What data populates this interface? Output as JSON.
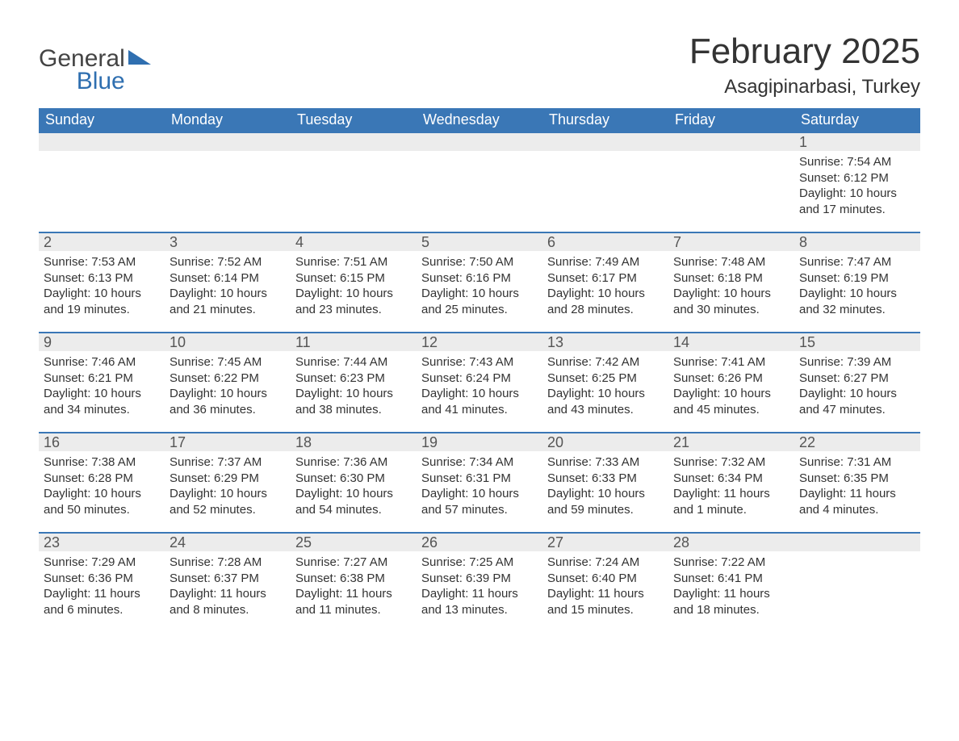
{
  "logo": {
    "word1": "General",
    "word2": "Blue"
  },
  "title": "February 2025",
  "subtitle": "Asagipinarbasi, Turkey",
  "colors": {
    "header_bg": "#3a77b6",
    "header_text": "#ffffff",
    "day_strip_bg": "#ececec",
    "day_strip_border": "#3a77b6",
    "text": "#333333",
    "logo_blue": "#2f6fb0",
    "background": "#ffffff"
  },
  "day_headers": [
    "Sunday",
    "Monday",
    "Tuesday",
    "Wednesday",
    "Thursday",
    "Friday",
    "Saturday"
  ],
  "weeks": [
    {
      "nums": [
        "",
        "",
        "",
        "",
        "",
        "",
        "1"
      ],
      "cells": [
        null,
        null,
        null,
        null,
        null,
        null,
        {
          "sunrise": "Sunrise: 7:54 AM",
          "sunset": "Sunset: 6:12 PM",
          "daylight1": "Daylight: 10 hours",
          "daylight2": "and 17 minutes."
        }
      ]
    },
    {
      "nums": [
        "2",
        "3",
        "4",
        "5",
        "6",
        "7",
        "8"
      ],
      "cells": [
        {
          "sunrise": "Sunrise: 7:53 AM",
          "sunset": "Sunset: 6:13 PM",
          "daylight1": "Daylight: 10 hours",
          "daylight2": "and 19 minutes."
        },
        {
          "sunrise": "Sunrise: 7:52 AM",
          "sunset": "Sunset: 6:14 PM",
          "daylight1": "Daylight: 10 hours",
          "daylight2": "and 21 minutes."
        },
        {
          "sunrise": "Sunrise: 7:51 AM",
          "sunset": "Sunset: 6:15 PM",
          "daylight1": "Daylight: 10 hours",
          "daylight2": "and 23 minutes."
        },
        {
          "sunrise": "Sunrise: 7:50 AM",
          "sunset": "Sunset: 6:16 PM",
          "daylight1": "Daylight: 10 hours",
          "daylight2": "and 25 minutes."
        },
        {
          "sunrise": "Sunrise: 7:49 AM",
          "sunset": "Sunset: 6:17 PM",
          "daylight1": "Daylight: 10 hours",
          "daylight2": "and 28 minutes."
        },
        {
          "sunrise": "Sunrise: 7:48 AM",
          "sunset": "Sunset: 6:18 PM",
          "daylight1": "Daylight: 10 hours",
          "daylight2": "and 30 minutes."
        },
        {
          "sunrise": "Sunrise: 7:47 AM",
          "sunset": "Sunset: 6:19 PM",
          "daylight1": "Daylight: 10 hours",
          "daylight2": "and 32 minutes."
        }
      ]
    },
    {
      "nums": [
        "9",
        "10",
        "11",
        "12",
        "13",
        "14",
        "15"
      ],
      "cells": [
        {
          "sunrise": "Sunrise: 7:46 AM",
          "sunset": "Sunset: 6:21 PM",
          "daylight1": "Daylight: 10 hours",
          "daylight2": "and 34 minutes."
        },
        {
          "sunrise": "Sunrise: 7:45 AM",
          "sunset": "Sunset: 6:22 PM",
          "daylight1": "Daylight: 10 hours",
          "daylight2": "and 36 minutes."
        },
        {
          "sunrise": "Sunrise: 7:44 AM",
          "sunset": "Sunset: 6:23 PM",
          "daylight1": "Daylight: 10 hours",
          "daylight2": "and 38 minutes."
        },
        {
          "sunrise": "Sunrise: 7:43 AM",
          "sunset": "Sunset: 6:24 PM",
          "daylight1": "Daylight: 10 hours",
          "daylight2": "and 41 minutes."
        },
        {
          "sunrise": "Sunrise: 7:42 AM",
          "sunset": "Sunset: 6:25 PM",
          "daylight1": "Daylight: 10 hours",
          "daylight2": "and 43 minutes."
        },
        {
          "sunrise": "Sunrise: 7:41 AM",
          "sunset": "Sunset: 6:26 PM",
          "daylight1": "Daylight: 10 hours",
          "daylight2": "and 45 minutes."
        },
        {
          "sunrise": "Sunrise: 7:39 AM",
          "sunset": "Sunset: 6:27 PM",
          "daylight1": "Daylight: 10 hours",
          "daylight2": "and 47 minutes."
        }
      ]
    },
    {
      "nums": [
        "16",
        "17",
        "18",
        "19",
        "20",
        "21",
        "22"
      ],
      "cells": [
        {
          "sunrise": "Sunrise: 7:38 AM",
          "sunset": "Sunset: 6:28 PM",
          "daylight1": "Daylight: 10 hours",
          "daylight2": "and 50 minutes."
        },
        {
          "sunrise": "Sunrise: 7:37 AM",
          "sunset": "Sunset: 6:29 PM",
          "daylight1": "Daylight: 10 hours",
          "daylight2": "and 52 minutes."
        },
        {
          "sunrise": "Sunrise: 7:36 AM",
          "sunset": "Sunset: 6:30 PM",
          "daylight1": "Daylight: 10 hours",
          "daylight2": "and 54 minutes."
        },
        {
          "sunrise": "Sunrise: 7:34 AM",
          "sunset": "Sunset: 6:31 PM",
          "daylight1": "Daylight: 10 hours",
          "daylight2": "and 57 minutes."
        },
        {
          "sunrise": "Sunrise: 7:33 AM",
          "sunset": "Sunset: 6:33 PM",
          "daylight1": "Daylight: 10 hours",
          "daylight2": "and 59 minutes."
        },
        {
          "sunrise": "Sunrise: 7:32 AM",
          "sunset": "Sunset: 6:34 PM",
          "daylight1": "Daylight: 11 hours",
          "daylight2": "and 1 minute."
        },
        {
          "sunrise": "Sunrise: 7:31 AM",
          "sunset": "Sunset: 6:35 PM",
          "daylight1": "Daylight: 11 hours",
          "daylight2": "and 4 minutes."
        }
      ]
    },
    {
      "nums": [
        "23",
        "24",
        "25",
        "26",
        "27",
        "28",
        ""
      ],
      "cells": [
        {
          "sunrise": "Sunrise: 7:29 AM",
          "sunset": "Sunset: 6:36 PM",
          "daylight1": "Daylight: 11 hours",
          "daylight2": "and 6 minutes."
        },
        {
          "sunrise": "Sunrise: 7:28 AM",
          "sunset": "Sunset: 6:37 PM",
          "daylight1": "Daylight: 11 hours",
          "daylight2": "and 8 minutes."
        },
        {
          "sunrise": "Sunrise: 7:27 AM",
          "sunset": "Sunset: 6:38 PM",
          "daylight1": "Daylight: 11 hours",
          "daylight2": "and 11 minutes."
        },
        {
          "sunrise": "Sunrise: 7:25 AM",
          "sunset": "Sunset: 6:39 PM",
          "daylight1": "Daylight: 11 hours",
          "daylight2": "and 13 minutes."
        },
        {
          "sunrise": "Sunrise: 7:24 AM",
          "sunset": "Sunset: 6:40 PM",
          "daylight1": "Daylight: 11 hours",
          "daylight2": "and 15 minutes."
        },
        {
          "sunrise": "Sunrise: 7:22 AM",
          "sunset": "Sunset: 6:41 PM",
          "daylight1": "Daylight: 11 hours",
          "daylight2": "and 18 minutes."
        },
        null
      ]
    }
  ]
}
